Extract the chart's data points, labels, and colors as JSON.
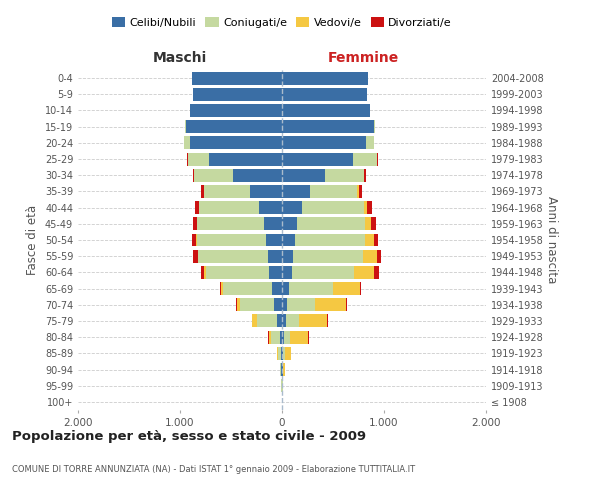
{
  "age_groups": [
    "100+",
    "95-99",
    "90-94",
    "85-89",
    "80-84",
    "75-79",
    "70-74",
    "65-69",
    "60-64",
    "55-59",
    "50-54",
    "45-49",
    "40-44",
    "35-39",
    "30-34",
    "25-29",
    "20-24",
    "15-19",
    "10-14",
    "5-9",
    "0-4"
  ],
  "birth_years": [
    "≤ 1908",
    "1909-1913",
    "1914-1918",
    "1919-1923",
    "1924-1928",
    "1929-1933",
    "1934-1938",
    "1939-1943",
    "1944-1948",
    "1949-1953",
    "1954-1958",
    "1959-1963",
    "1964-1968",
    "1969-1973",
    "1974-1978",
    "1979-1983",
    "1984-1988",
    "1989-1993",
    "1994-1998",
    "1999-2003",
    "2004-2008"
  ],
  "maschi": {
    "celibi": [
      2,
      2,
      5,
      8,
      20,
      50,
      80,
      100,
      130,
      140,
      155,
      175,
      230,
      310,
      480,
      720,
      900,
      940,
      900,
      870,
      880
    ],
    "coniugati": [
      1,
      3,
      10,
      30,
      90,
      200,
      330,
      480,
      620,
      680,
      680,
      660,
      580,
      450,
      380,
      200,
      60,
      10,
      3,
      2,
      1
    ],
    "vedovi": [
      0,
      0,
      2,
      8,
      20,
      40,
      30,
      15,
      10,
      8,
      5,
      3,
      2,
      2,
      1,
      1,
      0,
      0,
      0,
      0,
      0
    ],
    "divorziati": [
      0,
      0,
      0,
      2,
      5,
      5,
      8,
      10,
      35,
      40,
      38,
      32,
      40,
      30,
      15,
      8,
      2,
      1,
      0,
      0,
      0
    ]
  },
  "femmine": {
    "nubili": [
      2,
      3,
      5,
      8,
      15,
      35,
      50,
      70,
      95,
      110,
      130,
      145,
      200,
      270,
      420,
      700,
      820,
      900,
      860,
      830,
      840
    ],
    "coniugate": [
      1,
      3,
      8,
      20,
      60,
      130,
      270,
      430,
      610,
      680,
      680,
      670,
      600,
      470,
      380,
      230,
      80,
      15,
      3,
      2,
      1
    ],
    "vedove": [
      0,
      2,
      15,
      60,
      180,
      280,
      310,
      260,
      200,
      140,
      90,
      60,
      30,
      15,
      8,
      5,
      2,
      0,
      0,
      0,
      0
    ],
    "divorziate": [
      0,
      0,
      1,
      2,
      5,
      5,
      8,
      12,
      45,
      40,
      40,
      42,
      50,
      30,
      15,
      5,
      2,
      0,
      0,
      0,
      0
    ]
  },
  "colors": {
    "celibi_nubili": "#3a6ea5",
    "coniugati": "#c5d9a0",
    "vedovi": "#f5c842",
    "divorziati": "#cc1111"
  },
  "title": "Popolazione per età, sesso e stato civile - 2009",
  "subtitle": "COMUNE DI TORRE ANNUNZIATA (NA) - Dati ISTAT 1° gennaio 2009 - Elaborazione TUTTITALIA.IT",
  "xlabel_left": "Maschi",
  "xlabel_right": "Femmine",
  "ylabel_left": "Fasce di età",
  "ylabel_right": "Anni di nascita",
  "xlim": 2000,
  "background_color": "#ffffff",
  "grid_color": "#cccccc",
  "legend_labels": [
    "Celibi/Nubili",
    "Coniugati/e",
    "Vedovi/e",
    "Divorziati/e"
  ]
}
